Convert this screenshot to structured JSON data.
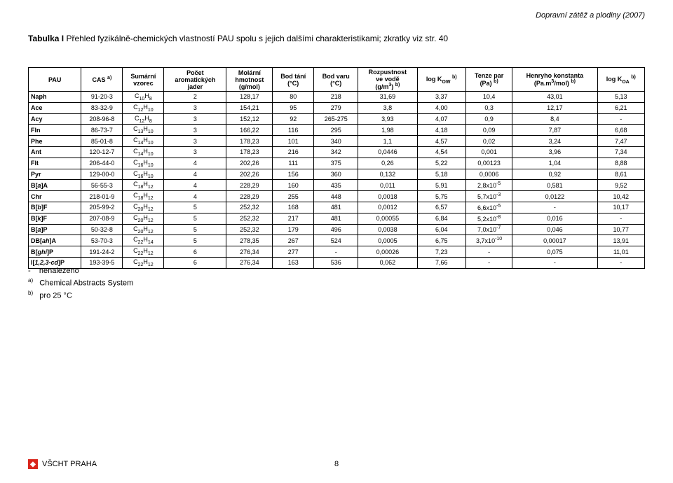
{
  "header_right": "Dopravní zátěž a plodiny (2007)",
  "title_bold": "Tabulka I",
  "title_rest": " Přehled fyzikálně-chemických vlastností PAU spolu s jejich dalšími charakteristikami; zkratky viz str. 40",
  "table": {
    "columns": [
      "PAU",
      "CAS a)",
      "Sumární vzorec",
      "Počet aromatických jader",
      "Molární hmotnost (g/mol)",
      "Bod tání (°C)",
      "Bod varu (°C)",
      "Rozpustnost ve vodě (g/m3) b)",
      "log KOW b)",
      "Tenze par (Pa) b)",
      "Henryho konstanta (Pa.m3/mol) b)",
      "log KOA b)"
    ],
    "rows": [
      [
        "Naph",
        "91-20-3",
        "C10H8",
        "2",
        "128,17",
        "80",
        "218",
        "31,69",
        "3,37",
        "10,4",
        "43,01",
        "5,13"
      ],
      [
        "Ace",
        "83-32-9",
        "C12H10",
        "3",
        "154,21",
        "95",
        "279",
        "3,8",
        "4,00",
        "0,3",
        "12,17",
        "6,21"
      ],
      [
        "Acy",
        "208-96-8",
        "C12H8",
        "3",
        "152,12",
        "92",
        "265-275",
        "3,93",
        "4,07",
        "0,9",
        "8,4",
        "-"
      ],
      [
        "Fln",
        "86-73-7",
        "C13H10",
        "3",
        "166,22",
        "116",
        "295",
        "1,98",
        "4,18",
        "0,09",
        "7,87",
        "6,68"
      ],
      [
        "Phe",
        "85-01-8",
        "C14H10",
        "3",
        "178,23",
        "101",
        "340",
        "1,1",
        "4,57",
        "0,02",
        "3,24",
        "7,47"
      ],
      [
        "Ant",
        "120-12-7",
        "C14H10",
        "3",
        "178,23",
        "216",
        "342",
        "0,0446",
        "4,54",
        "0,001",
        "3,96",
        "7,34"
      ],
      [
        "Flt",
        "206-44-0",
        "C16H10",
        "4",
        "202,26",
        "111",
        "375",
        "0,26",
        "5,22",
        "0,00123",
        "1,04",
        "8,88"
      ],
      [
        "Pyr",
        "129-00-0",
        "C16H10",
        "4",
        "202,26",
        "156",
        "360",
        "0,132",
        "5,18",
        "0,0006",
        "0,92",
        "8,61"
      ],
      [
        "B[a]A",
        "56-55-3",
        "C18H12",
        "4",
        "228,29",
        "160",
        "435",
        "0,011",
        "5,91",
        "2,8x10-5",
        "0,581",
        "9,52"
      ],
      [
        "Chr",
        "218-01-9",
        "C18H12",
        "4",
        "228,29",
        "255",
        "448",
        "0,0018",
        "5,75",
        "5,7x10-3",
        "0,0122",
        "10,42"
      ],
      [
        "B[b]F",
        "205-99-2",
        "C20H12",
        "5",
        "252,32",
        "168",
        "481",
        "0,0012",
        "6,57",
        "6,6x10-5",
        "-",
        "10,17"
      ],
      [
        "B[k]F",
        "207-08-9",
        "C20H12",
        "5",
        "252,32",
        "217",
        "481",
        "0,00055",
        "6,84",
        "5,2x10-8",
        "0,016",
        "-"
      ],
      [
        "B[a]P",
        "50-32-8",
        "C20H12",
        "5",
        "252,32",
        "179",
        "496",
        "0,0038",
        "6,04",
        "7,0x10-7",
        "0,046",
        "10,77"
      ],
      [
        "DB[ah]A",
        "53-70-3",
        "C22H14",
        "5",
        "278,35",
        "267",
        "524",
        "0,0005",
        "6,75",
        "3,7x10-10",
        "0,00017",
        "13,91"
      ],
      [
        "B[ghi]P",
        "191-24-2",
        "C22H12",
        "6",
        "276,34",
        "277",
        "-",
        "0,00026",
        "7,23",
        "-",
        "0,075",
        "11,01"
      ],
      [
        "I[1,2,3-cd]P",
        "193-39-5",
        "C22H12",
        "6",
        "276,34",
        "163",
        "536",
        "0,062",
        "7,66",
        "-",
        "-",
        "-"
      ]
    ]
  },
  "footnotes": {
    "dash": "nenalezeno",
    "a": "Chemical Abstracts System",
    "b": "pro 25 °C"
  },
  "footer": {
    "label": "VŠCHT PRAHA",
    "page": "8"
  },
  "colors": {
    "text": "#000000",
    "logo_bg": "#d9261c",
    "background": "#ffffff",
    "border": "#000000"
  }
}
